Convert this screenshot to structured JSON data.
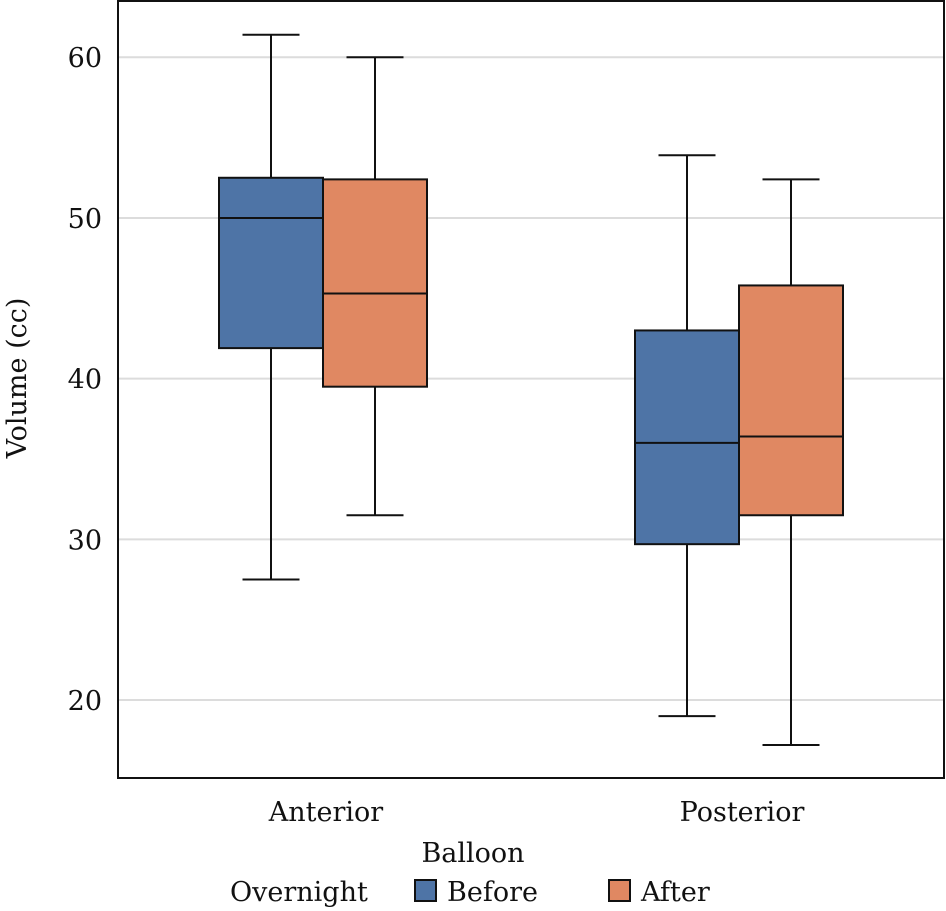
{
  "chart_data": {
    "type": "box",
    "title": "",
    "xlabel": "Balloon",
    "ylabel": "Volume (cc)",
    "ylim": [
      15.15,
      63.5
    ],
    "yticks": [
      20,
      30,
      40,
      50,
      60
    ],
    "grid": "horizontal",
    "categories": [
      "Anterior",
      "Posterior"
    ],
    "legend": {
      "title": "Overnight",
      "placement": "bottom",
      "entries": [
        {
          "name": "Before",
          "color": "#4e74a6"
        },
        {
          "name": "After",
          "color": "#e08862"
        }
      ]
    },
    "series": [
      {
        "name": "Before",
        "color": "#4e74a6",
        "boxes": [
          {
            "category": "Anterior",
            "min": 27.5,
            "q1": 41.9,
            "median": 50.0,
            "q3": 52.5,
            "max": 61.4
          },
          {
            "category": "Posterior",
            "min": 19.0,
            "q1": 29.7,
            "median": 36.0,
            "q3": 43.0,
            "max": 53.9
          }
        ]
      },
      {
        "name": "After",
        "color": "#e08862",
        "boxes": [
          {
            "category": "Anterior",
            "min": 31.5,
            "q1": 39.5,
            "median": 45.3,
            "q3": 52.4,
            "max": 60.0
          },
          {
            "category": "Posterior",
            "min": 17.2,
            "q1": 31.5,
            "median": 36.4,
            "q3": 45.8,
            "max": 52.4
          }
        ]
      }
    ]
  }
}
